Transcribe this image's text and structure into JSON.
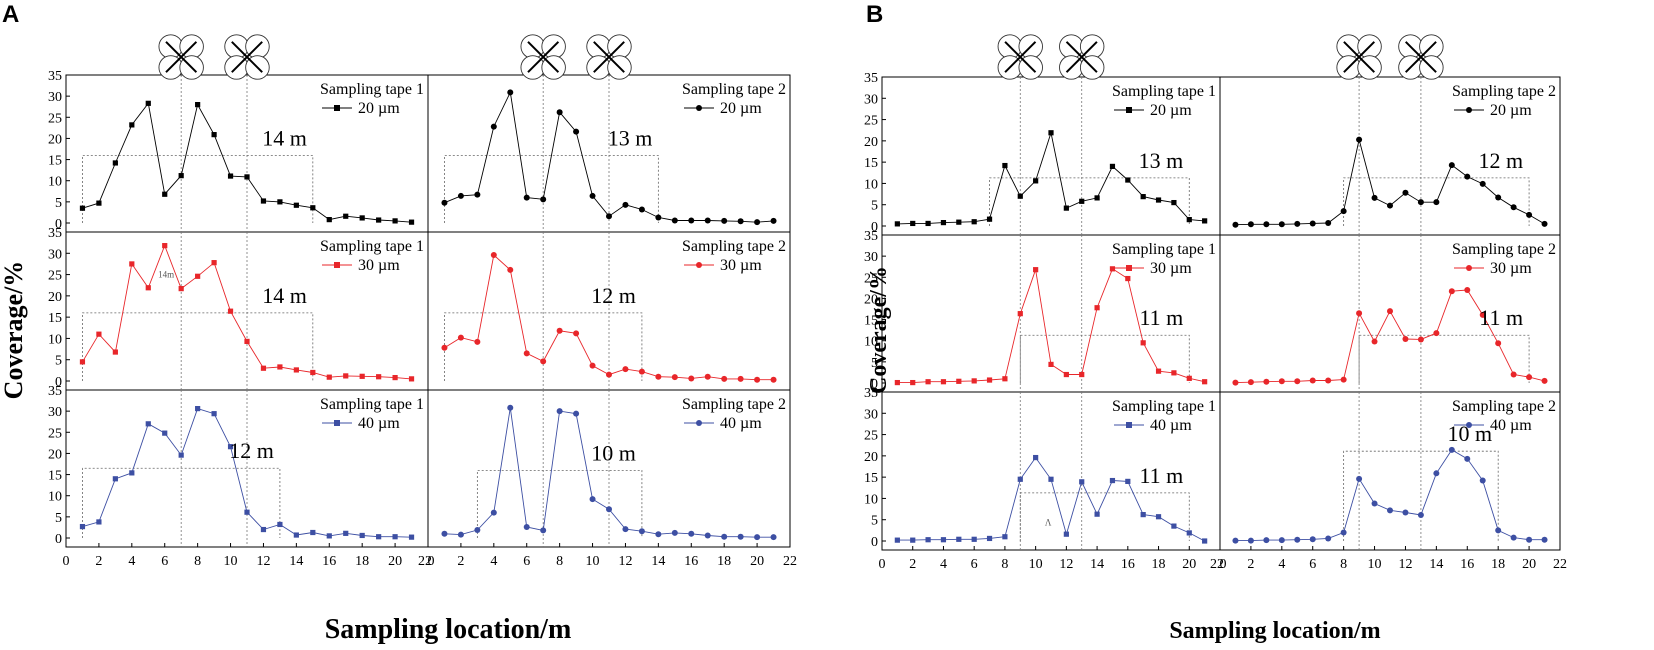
{
  "figure": {
    "panels": [
      {
        "letter": "A",
        "y_label": "Coverage/%",
        "x_label": "Sampling location/m"
      },
      {
        "letter": "B",
        "y_label": "Coverage/%",
        "x_label": "Sampling location/m"
      }
    ]
  },
  "chart_data": [
    {
      "type": "line",
      "panel": "A",
      "row": 0,
      "col": 0,
      "title": "Sampling tape 1",
      "legend": "20 µm",
      "color": "#000000",
      "marker": "square",
      "annotation": "14 m",
      "note": "",
      "x": [
        1,
        2,
        3,
        4,
        5,
        6,
        7,
        8,
        9,
        10,
        11,
        12,
        13,
        14,
        15,
        16,
        17,
        18,
        19,
        20,
        21
      ],
      "values": [
        3.5,
        4.7,
        14.2,
        23.2,
        28.3,
        6.8,
        11.2,
        28.0,
        20.9,
        11.1,
        10.9,
        5.2,
        5.0,
        4.2,
        3.6,
        0.8,
        1.6,
        1.2,
        0.7,
        0.5,
        0.2
      ],
      "ylim": [
        0,
        35
      ],
      "xlim": [
        0,
        22
      ],
      "box": [
        1,
        15,
        16
      ],
      "drone_x": [
        7,
        11
      ]
    },
    {
      "type": "line",
      "panel": "A",
      "row": 0,
      "col": 1,
      "title": "Sampling tape 2",
      "legend": "20 µm",
      "color": "#000000",
      "marker": "circle",
      "annotation": "13 m",
      "note": "",
      "x": [
        1,
        2,
        3,
        4,
        5,
        6,
        7,
        8,
        9,
        10,
        11,
        12,
        13,
        14,
        15,
        16,
        17,
        18,
        19,
        20,
        21
      ],
      "values": [
        4.8,
        6.4,
        6.7,
        22.8,
        30.9,
        6.0,
        5.6,
        26.2,
        21.6,
        6.4,
        1.6,
        4.3,
        3.2,
        1.3,
        0.6,
        0.6,
        0.6,
        0.5,
        0.4,
        0.2,
        0.5
      ],
      "ylim": [
        0,
        35
      ],
      "xlim": [
        0,
        22
      ],
      "box": [
        1,
        14,
        16
      ],
      "drone_x": [
        7,
        11
      ]
    },
    {
      "type": "line",
      "panel": "A",
      "row": 1,
      "col": 0,
      "title": "Sampling tape 1",
      "legend": "30 µm",
      "color": "#e8262a",
      "marker": "square",
      "annotation": "14 m",
      "note": "14m",
      "x": [
        1,
        2,
        3,
        4,
        5,
        6,
        7,
        8,
        9,
        10,
        11,
        12,
        13,
        14,
        15,
        16,
        17,
        18,
        19,
        20,
        21
      ],
      "values": [
        4.5,
        11.0,
        6.8,
        27.5,
        21.9,
        31.8,
        21.7,
        24.6,
        27.8,
        16.4,
        9.3,
        3.0,
        3.3,
        2.6,
        2.0,
        0.9,
        1.2,
        1.1,
        1.0,
        0.8,
        0.5
      ],
      "ylim": [
        0,
        35
      ],
      "xlim": [
        0,
        22
      ],
      "box": [
        1,
        15,
        16
      ],
      "drone_x": [
        7,
        11
      ]
    },
    {
      "type": "line",
      "panel": "A",
      "row": 1,
      "col": 1,
      "title": "Sampling tape 2",
      "legend": "30 µm",
      "color": "#e8262a",
      "marker": "circle",
      "annotation": "12 m",
      "note": "",
      "x": [
        1,
        2,
        3,
        4,
        5,
        6,
        7,
        8,
        9,
        10,
        11,
        12,
        13,
        14,
        15,
        16,
        17,
        18,
        19,
        20,
        21
      ],
      "values": [
        7.8,
        10.2,
        9.2,
        29.6,
        26.1,
        6.5,
        4.6,
        11.8,
        11.2,
        3.6,
        1.5,
        2.8,
        2.2,
        1.0,
        0.9,
        0.6,
        1.0,
        0.5,
        0.5,
        0.3,
        0.3
      ],
      "ylim": [
        0,
        35
      ],
      "xlim": [
        0,
        22
      ],
      "box": [
        1,
        13,
        16
      ],
      "drone_x": [
        7,
        11
      ]
    },
    {
      "type": "line",
      "panel": "A",
      "row": 2,
      "col": 0,
      "title": "Sampling tape 1",
      "legend": "40 µm",
      "color": "#3d4fa3",
      "marker": "square",
      "annotation": "12 m",
      "note": "",
      "x": [
        1,
        2,
        3,
        4,
        5,
        6,
        7,
        8,
        9,
        10,
        11,
        12,
        13,
        14,
        15,
        16,
        17,
        18,
        19,
        20,
        21
      ],
      "values": [
        2.7,
        3.8,
        14.0,
        15.4,
        27.0,
        24.8,
        19.6,
        30.6,
        29.4,
        21.6,
        6.1,
        2.0,
        3.2,
        0.7,
        1.3,
        0.5,
        1.1,
        0.6,
        0.3,
        0.3,
        0.2
      ],
      "ylim": [
        0,
        35
      ],
      "xlim": [
        0,
        22
      ],
      "box": [
        1,
        13,
        16.5
      ],
      "drone_x": [
        7,
        11
      ]
    },
    {
      "type": "line",
      "panel": "A",
      "row": 2,
      "col": 1,
      "title": "Sampling tape 2",
      "legend": "40 µm",
      "color": "#3d4fa3",
      "marker": "circle",
      "annotation": "10 m",
      "note": "",
      "x": [
        1,
        2,
        3,
        4,
        5,
        6,
        7,
        8,
        9,
        10,
        11,
        12,
        13,
        14,
        15,
        16,
        17,
        18,
        19,
        20,
        21
      ],
      "values": [
        1.0,
        0.8,
        1.9,
        6.0,
        30.8,
        2.6,
        1.8,
        30.0,
        29.4,
        9.2,
        6.8,
        2.1,
        1.6,
        0.9,
        1.2,
        1.0,
        0.6,
        0.3,
        0.3,
        0.2,
        0.2
      ],
      "ylim": [
        0,
        35
      ],
      "xlim": [
        0,
        22
      ],
      "box": [
        3,
        13,
        16
      ],
      "drone_x": [
        7,
        11
      ]
    },
    {
      "type": "line",
      "panel": "B",
      "row": 0,
      "col": 0,
      "title": "Sampling tape 1",
      "legend": "20 µm",
      "color": "#000000",
      "marker": "square",
      "annotation": "13 m",
      "note": "",
      "x": [
        1,
        2,
        3,
        4,
        5,
        6,
        7,
        8,
        9,
        10,
        11,
        12,
        13,
        14,
        15,
        16,
        17,
        18,
        19,
        20,
        21
      ],
      "values": [
        0.5,
        0.6,
        0.6,
        0.8,
        0.9,
        1.0,
        1.6,
        14.2,
        7.0,
        10.6,
        21.9,
        4.2,
        5.8,
        6.6,
        14.0,
        10.8,
        6.9,
        6.1,
        5.5,
        1.5,
        1.2
      ],
      "ylim": [
        0,
        35
      ],
      "xlim": [
        0,
        22
      ],
      "box": [
        7,
        20,
        11.3
      ],
      "drone_x": [
        9,
        13
      ]
    },
    {
      "type": "line",
      "panel": "B",
      "row": 0,
      "col": 1,
      "title": "Sampling tape 2",
      "legend": "20 µm",
      "color": "#000000",
      "marker": "circle",
      "annotation": "12 m",
      "note": "",
      "x": [
        1,
        2,
        3,
        4,
        5,
        6,
        7,
        8,
        9,
        10,
        11,
        12,
        13,
        14,
        15,
        16,
        17,
        18,
        19,
        20,
        21
      ],
      "values": [
        0.3,
        0.4,
        0.4,
        0.4,
        0.5,
        0.6,
        0.7,
        3.5,
        20.3,
        6.6,
        4.8,
        7.8,
        5.6,
        5.6,
        14.3,
        11.6,
        9.9,
        6.7,
        4.4,
        2.6,
        0.5
      ],
      "ylim": [
        0,
        35
      ],
      "xlim": [
        0,
        22
      ],
      "box": [
        8,
        20,
        11.3
      ],
      "drone_x": [
        9,
        13
      ]
    },
    {
      "type": "line",
      "panel": "B",
      "row": 1,
      "col": 0,
      "title": "Sampling tape 1",
      "legend": "30 µm",
      "color": "#e8262a",
      "marker": "square",
      "annotation": "11 m",
      "note": "",
      "x": [
        1,
        2,
        3,
        4,
        5,
        6,
        7,
        8,
        9,
        10,
        11,
        12,
        13,
        14,
        15,
        16,
        17,
        18,
        19,
        20,
        21
      ],
      "values": [
        0.1,
        0.1,
        0.3,
        0.3,
        0.4,
        0.5,
        0.7,
        1.0,
        16.4,
        26.8,
        4.4,
        2.0,
        2.0,
        17.8,
        27.0,
        24.7,
        9.5,
        2.8,
        2.4,
        1.1,
        0.3
      ],
      "ylim": [
        0,
        35
      ],
      "xlim": [
        0,
        22
      ],
      "box": [
        9,
        20,
        11.3
      ],
      "drone_x": [
        9,
        13
      ]
    },
    {
      "type": "line",
      "panel": "B",
      "row": 1,
      "col": 1,
      "title": "Sampling tape 2",
      "legend": "30 µm",
      "color": "#e8262a",
      "marker": "circle",
      "annotation": "11 m",
      "note": "",
      "x": [
        1,
        2,
        3,
        4,
        5,
        6,
        7,
        8,
        9,
        10,
        11,
        12,
        13,
        14,
        15,
        16,
        17,
        18,
        19,
        20,
        21
      ],
      "values": [
        0.1,
        0.2,
        0.3,
        0.4,
        0.4,
        0.6,
        0.6,
        0.8,
        16.5,
        9.8,
        17.0,
        10.4,
        10.3,
        11.8,
        21.7,
        22.0,
        16.1,
        9.4,
        2.0,
        1.4,
        0.5
      ],
      "ylim": [
        0,
        35
      ],
      "xlim": [
        0,
        22
      ],
      "box": [
        9,
        20,
        11.3
      ],
      "drone_x": [
        9,
        13
      ]
    },
    {
      "type": "line",
      "panel": "B",
      "row": 2,
      "col": 0,
      "title": "Sampling tape 1",
      "legend": "40 µm",
      "color": "#3d4fa3",
      "marker": "square",
      "annotation": "11 m",
      "note": "Λ",
      "x": [
        1,
        2,
        3,
        4,
        5,
        6,
        7,
        8,
        9,
        10,
        11,
        12,
        13,
        14,
        15,
        16,
        17,
        18,
        19,
        20,
        21
      ],
      "values": [
        0.2,
        0.2,
        0.3,
        0.3,
        0.4,
        0.4,
        0.6,
        1.0,
        14.5,
        19.6,
        14.5,
        1.6,
        13.9,
        6.3,
        14.2,
        14.0,
        6.2,
        5.7,
        3.5,
        1.9,
        0.0
      ],
      "ylim": [
        0,
        35
      ],
      "xlim": [
        0,
        22
      ],
      "box": [
        9,
        20,
        11.3
      ],
      "drone_x": [
        9,
        13
      ]
    },
    {
      "type": "line",
      "panel": "B",
      "row": 2,
      "col": 1,
      "title": "Sampling tape 2",
      "legend": "40 µm",
      "color": "#3d4fa3",
      "marker": "circle",
      "annotation": "10 m",
      "note": "",
      "x": [
        1,
        2,
        3,
        4,
        5,
        6,
        7,
        8,
        9,
        10,
        11,
        12,
        13,
        14,
        15,
        16,
        17,
        18,
        19,
        20,
        21
      ],
      "values": [
        0.1,
        0.1,
        0.2,
        0.2,
        0.3,
        0.4,
        0.6,
        2.0,
        14.6,
        8.8,
        7.2,
        6.7,
        6.1,
        15.9,
        21.4,
        19.3,
        14.2,
        2.5,
        0.8,
        0.3,
        0.3
      ],
      "ylim": [
        0,
        35
      ],
      "xlim": [
        0,
        22
      ],
      "box": [
        8,
        18,
        21.1
      ],
      "drone_x": [
        9,
        13
      ]
    }
  ]
}
